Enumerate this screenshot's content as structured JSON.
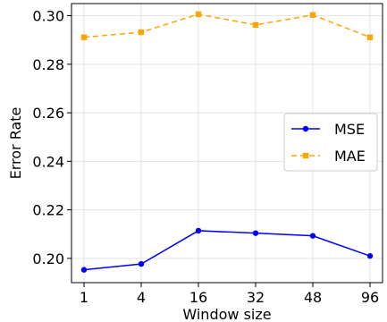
{
  "chart_data": {
    "type": "line",
    "xlabel": "Window size",
    "ylabel": "Error Rate",
    "categories": [
      "1",
      "4",
      "16",
      "32",
      "48",
      "96"
    ],
    "ylim": [
      0.19,
      0.305
    ],
    "yticks": [
      "0.20",
      "0.22",
      "0.24",
      "0.26",
      "0.28",
      "0.30"
    ],
    "ytick_values": [
      0.2,
      0.22,
      0.24,
      0.26,
      0.28,
      0.3
    ],
    "grid": true,
    "legend_position": "center-right",
    "series": [
      {
        "name": "MSE",
        "values": [
          0.1953,
          0.1977,
          0.2114,
          0.2104,
          0.2093,
          0.201
        ],
        "color": "#0000ff",
        "line_style": "solid",
        "marker": "circle"
      },
      {
        "name": "MAE",
        "values": [
          0.2911,
          0.2932,
          0.3006,
          0.2962,
          0.3003,
          0.2911
        ],
        "color": "#ffa500",
        "line_style": "dashed",
        "marker": "square"
      }
    ]
  }
}
